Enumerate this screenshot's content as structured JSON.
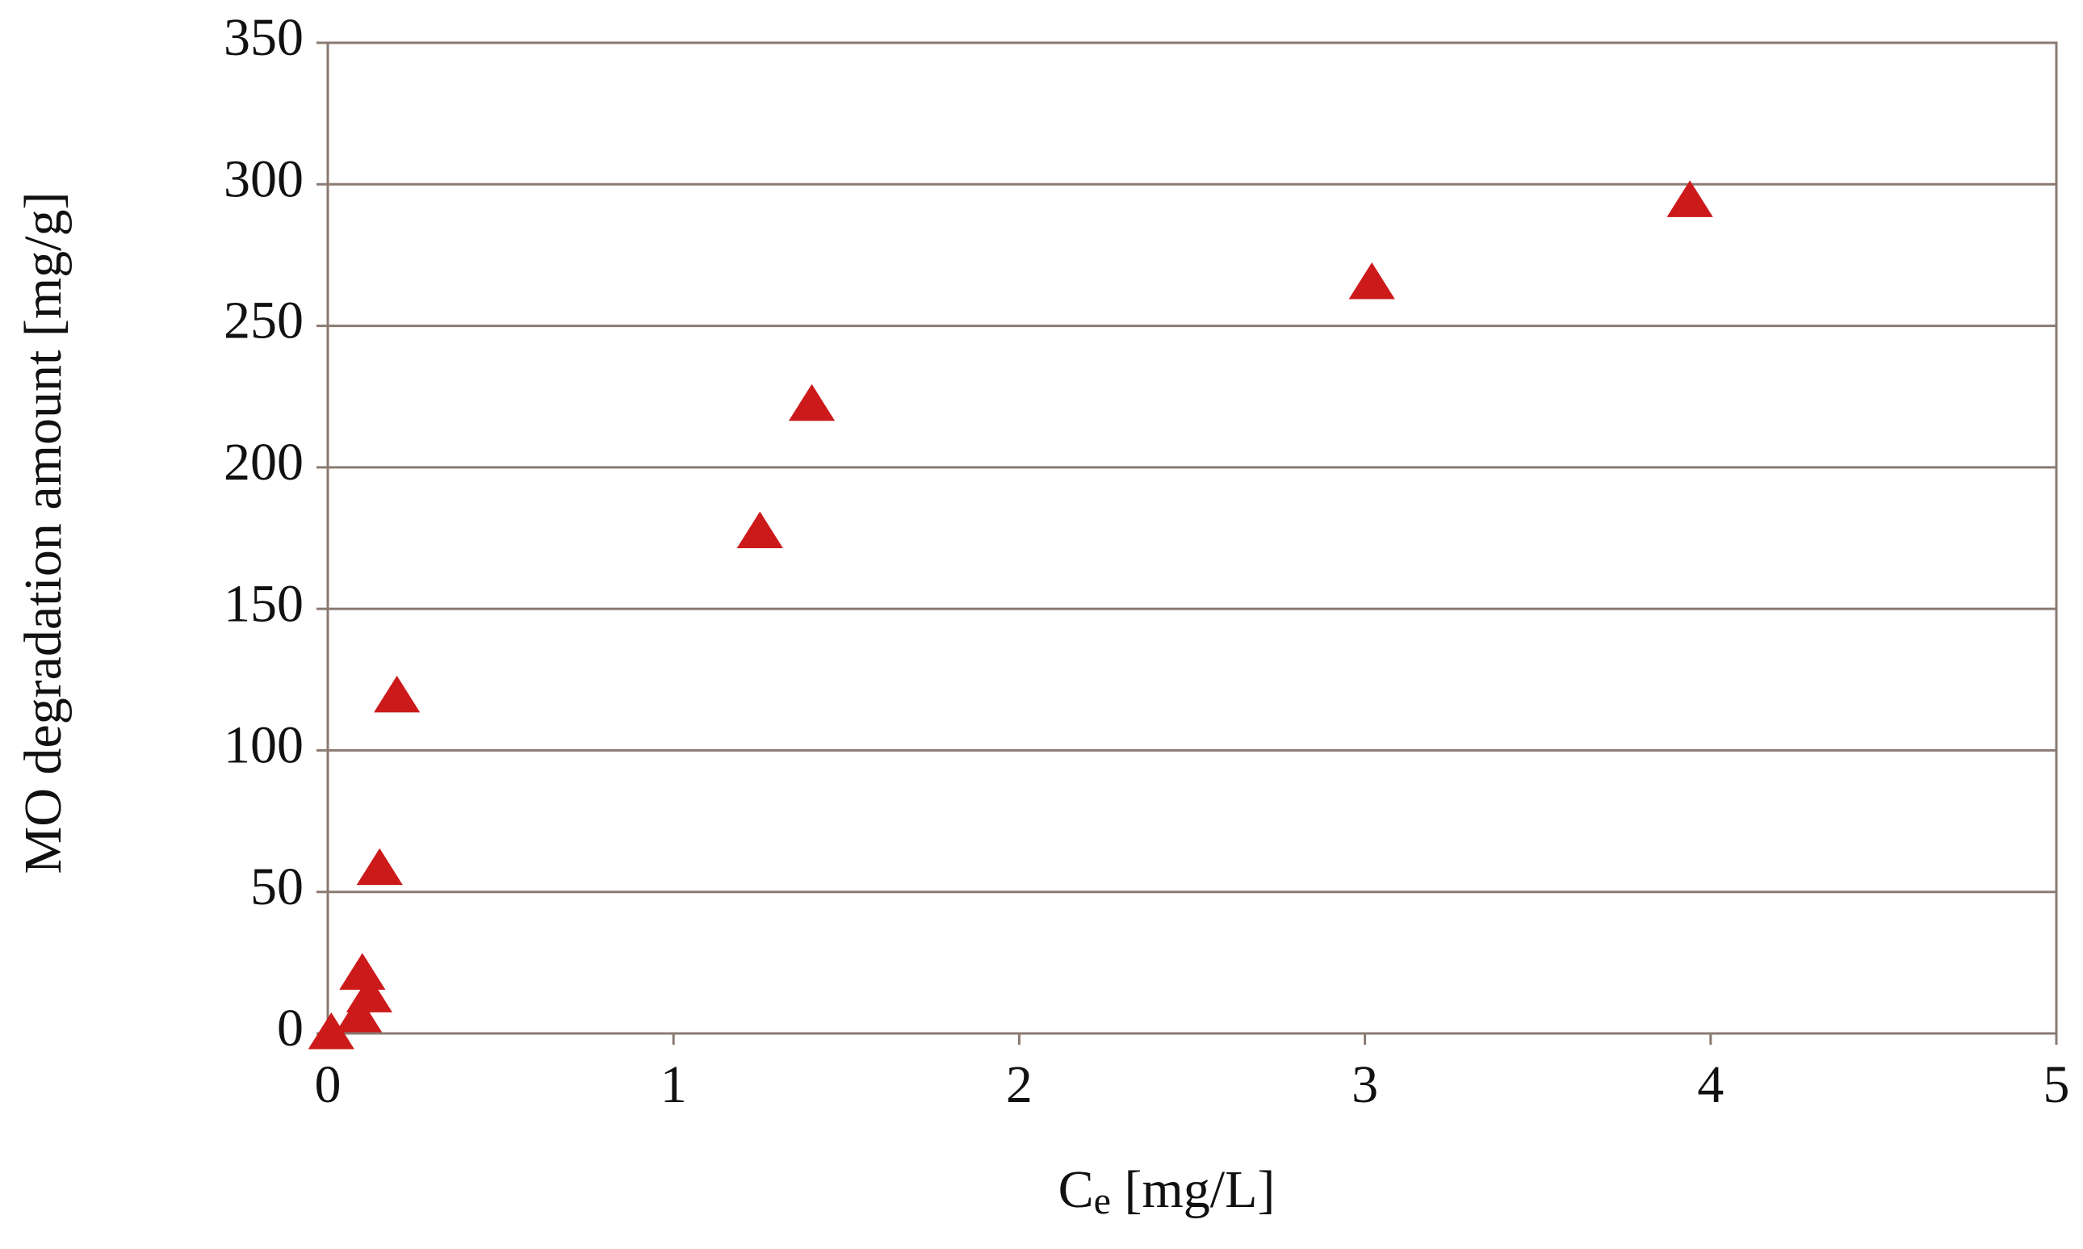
{
  "chart_data": {
    "type": "scatter",
    "ylabel": "MO degradation amount [mg/g]",
    "xlabel_parts": [
      "C",
      "e",
      " [mg/L]"
    ],
    "series": [
      {
        "name": "MO",
        "color": "#cc1a1a",
        "x": [
          0.01,
          0.09,
          0.1,
          0.12,
          0.15,
          0.2,
          1.25,
          1.4,
          3.02,
          3.94
        ],
        "values": [
          0,
          6,
          21,
          13,
          58,
          119,
          177,
          222,
          265,
          294
        ]
      }
    ],
    "xlim": [
      0,
      5
    ],
    "xticks": [
      0,
      1,
      2,
      3,
      4,
      5
    ],
    "ylim": [
      0,
      350
    ],
    "yticks": [
      0,
      50,
      100,
      150,
      200,
      250,
      300,
      350
    ],
    "grid": true
  }
}
